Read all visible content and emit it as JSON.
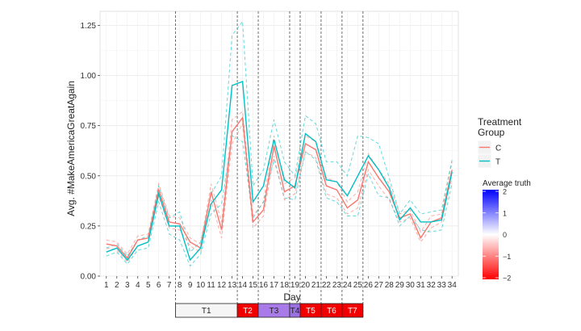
{
  "chart_data": {
    "type": "line",
    "title": "",
    "xlabel": "Day",
    "ylabel": "Avg. #MakeAmericaGreatAgain",
    "xlim": [
      0.4,
      34.6
    ],
    "ylim": [
      0.0,
      1.32
    ],
    "y_ticks": [
      0.0,
      0.25,
      0.5,
      0.75,
      1.0,
      1.25
    ],
    "y_tick_labels": [
      "0.00",
      "0.25",
      "0.50",
      "0.75",
      "1.00",
      "1.25"
    ],
    "x": [
      1,
      2,
      3,
      4,
      5,
      6,
      7,
      8,
      9,
      10,
      11,
      12,
      13,
      14,
      15,
      16,
      17,
      18,
      19,
      20,
      21,
      22,
      23,
      24,
      25,
      26,
      27,
      28,
      29,
      30,
      31,
      32,
      33,
      34
    ],
    "grid": true,
    "series": [
      {
        "name": "C",
        "color": "#F8766D",
        "values": [
          0.16,
          0.15,
          0.09,
          0.18,
          0.19,
          0.43,
          0.27,
          0.26,
          0.17,
          0.14,
          0.42,
          0.23,
          0.72,
          0.79,
          0.27,
          0.33,
          0.65,
          0.42,
          0.45,
          0.66,
          0.63,
          0.45,
          0.43,
          0.34,
          0.38,
          0.57,
          0.49,
          0.42,
          0.29,
          0.31,
          0.19,
          0.27,
          0.29,
          0.53
        ],
        "upper": [
          0.18,
          0.17,
          0.11,
          0.2,
          0.21,
          0.46,
          0.3,
          0.29,
          0.19,
          0.16,
          0.46,
          0.27,
          0.78,
          0.82,
          0.3,
          0.37,
          0.7,
          0.46,
          0.49,
          0.7,
          0.67,
          0.49,
          0.47,
          0.37,
          0.42,
          0.61,
          0.53,
          0.46,
          0.31,
          0.33,
          0.22,
          0.3,
          0.31,
          0.57
        ],
        "lower": [
          0.14,
          0.13,
          0.07,
          0.15,
          0.17,
          0.4,
          0.24,
          0.23,
          0.15,
          0.12,
          0.38,
          0.19,
          0.66,
          0.76,
          0.24,
          0.3,
          0.6,
          0.38,
          0.41,
          0.62,
          0.59,
          0.41,
          0.39,
          0.31,
          0.34,
          0.53,
          0.45,
          0.38,
          0.27,
          0.29,
          0.17,
          0.24,
          0.27,
          0.49
        ]
      },
      {
        "name": "T",
        "color": "#00BFC4",
        "values": [
          0.12,
          0.14,
          0.08,
          0.15,
          0.17,
          0.41,
          0.25,
          0.25,
          0.08,
          0.14,
          0.36,
          0.43,
          0.95,
          0.97,
          0.37,
          0.45,
          0.68,
          0.48,
          0.44,
          0.71,
          0.67,
          0.48,
          0.47,
          0.4,
          0.5,
          0.6,
          0.53,
          0.44,
          0.28,
          0.34,
          0.27,
          0.27,
          0.28,
          0.52
        ],
        "upper": [
          0.14,
          0.16,
          0.1,
          0.18,
          0.2,
          0.45,
          0.29,
          0.32,
          0.12,
          0.17,
          0.41,
          0.5,
          1.2,
          1.27,
          0.45,
          0.53,
          0.78,
          0.57,
          0.5,
          0.8,
          0.76,
          0.57,
          0.57,
          0.5,
          0.7,
          0.69,
          0.66,
          0.49,
          0.31,
          0.38,
          0.31,
          0.32,
          0.33,
          0.58
        ],
        "lower": [
          0.1,
          0.12,
          0.06,
          0.13,
          0.14,
          0.37,
          0.21,
          0.18,
          0.05,
          0.11,
          0.31,
          0.36,
          0.7,
          0.67,
          0.29,
          0.37,
          0.58,
          0.39,
          0.38,
          0.62,
          0.58,
          0.39,
          0.37,
          0.3,
          0.3,
          0.51,
          0.4,
          0.39,
          0.25,
          0.3,
          0.23,
          0.22,
          0.23,
          0.46
        ]
      }
    ],
    "vlines": [
      7.6,
      13.5,
      15.5,
      18.5,
      19.5,
      21.5,
      23.5,
      25.5
    ],
    "treatment_periods": [
      {
        "label": "T1",
        "start": 7.6,
        "end": 13.5,
        "color": "#F5F5F5",
        "text_color": "#222222"
      },
      {
        "label": "T2",
        "start": 13.5,
        "end": 15.5,
        "color": "#F20000",
        "text_color": "#FFFFFF"
      },
      {
        "label": "T3",
        "start": 15.5,
        "end": 18.5,
        "color": "#A97BE8",
        "text_color": "#222222"
      },
      {
        "label": "T4",
        "start": 18.5,
        "end": 19.5,
        "color": "#9A72E0",
        "text_color": "#222222"
      },
      {
        "label": "T5",
        "start": 19.5,
        "end": 21.5,
        "color": "#F20000",
        "text_color": "#FFFFFF"
      },
      {
        "label": "T6",
        "start": 21.5,
        "end": 23.5,
        "color": "#F20000",
        "text_color": "#FFFFFF"
      },
      {
        "label": "T7",
        "start": 23.5,
        "end": 25.5,
        "color": "#F20000",
        "text_color": "#FFFFFF"
      }
    ],
    "legend": {
      "placement": "right",
      "title_line1": "Treatment",
      "title_line2": "Group",
      "entries": [
        "C",
        "T"
      ]
    },
    "colorbar": {
      "title": "Average truth",
      "ticks": [
        2,
        1,
        0,
        -1,
        -2
      ],
      "tick_labels": [
        "2",
        "1",
        "0",
        "−1",
        "−2"
      ],
      "low_color": "#FF0000",
      "mid_color": "#FFFFFF",
      "high_color": "#0000FF"
    }
  }
}
